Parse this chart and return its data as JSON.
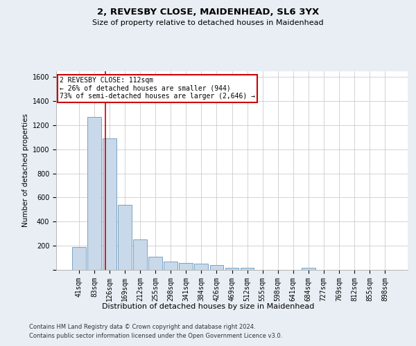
{
  "title1": "2, REVESBY CLOSE, MAIDENHEAD, SL6 3YX",
  "title2": "Size of property relative to detached houses in Maidenhead",
  "xlabel": "Distribution of detached houses by size in Maidenhead",
  "ylabel": "Number of detached properties",
  "footer1": "Contains HM Land Registry data © Crown copyright and database right 2024.",
  "footer2": "Contains public sector information licensed under the Open Government Licence v3.0.",
  "annotation_title": "2 REVESBY CLOSE: 112sqm",
  "annotation_line1": "← 26% of detached houses are smaller (944)",
  "annotation_line2": "73% of semi-detached houses are larger (2,646) →",
  "bar_color": "#c9d9ea",
  "bar_edge_color": "#6699bb",
  "annotation_box_color": "#ffffff",
  "annotation_box_edge": "#cc0000",
  "categories": [
    "41sqm",
    "83sqm",
    "126sqm",
    "169sqm",
    "212sqm",
    "255sqm",
    "298sqm",
    "341sqm",
    "384sqm",
    "426sqm",
    "469sqm",
    "512sqm",
    "555sqm",
    "598sqm",
    "641sqm",
    "684sqm",
    "727sqm",
    "769sqm",
    "812sqm",
    "855sqm",
    "898sqm"
  ],
  "values": [
    190,
    1270,
    1090,
    540,
    250,
    110,
    70,
    55,
    50,
    40,
    20,
    20,
    0,
    0,
    0,
    20,
    0,
    0,
    0,
    0,
    0
  ],
  "red_line_x": 1.72,
  "ylim": [
    0,
    1650
  ],
  "yticks": [
    0,
    200,
    400,
    600,
    800,
    1000,
    1200,
    1400,
    1600
  ],
  "grid_color": "#cccccc",
  "background_color": "#e8eef4",
  "plot_bg_color": "#ffffff",
  "title1_fontsize": 9.5,
  "title2_fontsize": 8,
  "ylabel_fontsize": 7.5,
  "xlabel_fontsize": 8,
  "tick_fontsize": 7,
  "footer_fontsize": 6
}
